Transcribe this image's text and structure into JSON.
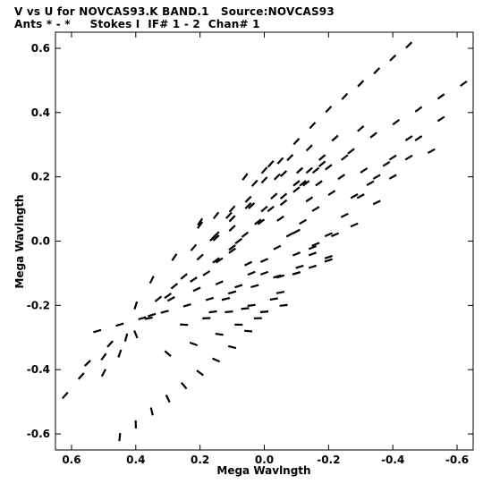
{
  "header": {
    "line1": "V vs U for NOVCAS93.K BAND.1   Source:NOVCAS93",
    "line2": "Ants * - *     Stokes I  IF# 1 - 2  Chan# 1"
  },
  "chart_data": {
    "type": "scatter",
    "title": "V vs U for NOVCAS93.K BAND.1   Source:NOVCAS93",
    "subtitle": "Ants * - *     Stokes I  IF# 1 - 2  Chan# 1",
    "xlabel": "Mega Wavlngth",
    "ylabel": "Mega Wavlngth",
    "xlim": [
      0.65,
      -0.65
    ],
    "ylim": [
      -0.65,
      0.65
    ],
    "x_inverted": true,
    "x_ticks": [
      "0.6",
      "0.4",
      "0.2",
      "0.0",
      "-0.2",
      "-0.4",
      "-0.6"
    ],
    "x_tick_values": [
      0.6,
      0.4,
      0.2,
      0.0,
      -0.2,
      -0.4,
      -0.6
    ],
    "y_ticks": [
      "0.6",
      "0.4",
      "0.2",
      "0.0",
      "-0.2",
      "-0.4",
      "-0.6"
    ],
    "y_tick_values": [
      0.6,
      0.4,
      0.2,
      0.0,
      -0.2,
      -0.4,
      -0.6
    ],
    "grid": false,
    "marker": "short dash",
    "color": "#000000",
    "series": [
      {
        "points": [
          [
            -0.45,
            0.61
          ],
          [
            -0.4,
            0.57
          ],
          [
            -0.35,
            0.53
          ],
          [
            -0.3,
            0.49
          ],
          [
            -0.25,
            0.45
          ],
          [
            -0.2,
            0.41
          ],
          [
            -0.15,
            0.36
          ],
          [
            -0.1,
            0.31
          ],
          [
            -0.05,
            0.25
          ],
          [
            0.0,
            0.19
          ],
          [
            0.05,
            0.13
          ],
          [
            0.1,
            0.07
          ],
          [
            0.15,
            0.01
          ],
          [
            0.2,
            -0.05
          ],
          [
            0.25,
            -0.11
          ],
          [
            0.3,
            -0.17
          ],
          [
            0.35,
            -0.23
          ],
          [
            0.4,
            -0.29
          ],
          [
            0.45,
            -0.35
          ],
          [
            0.5,
            -0.41
          ],
          [
            -0.62,
            0.49
          ],
          [
            -0.55,
            0.45
          ],
          [
            -0.48,
            0.41
          ],
          [
            -0.41,
            0.37
          ],
          [
            -0.34,
            0.33
          ],
          [
            -0.27,
            0.28
          ],
          [
            -0.2,
            0.23
          ],
          [
            -0.13,
            0.18
          ],
          [
            -0.06,
            0.12
          ],
          [
            0.01,
            0.06
          ],
          [
            0.08,
            0.0
          ],
          [
            0.15,
            -0.06
          ],
          [
            0.22,
            -0.12
          ],
          [
            0.29,
            -0.18
          ],
          [
            0.36,
            -0.24
          ],
          [
            0.43,
            -0.3
          ],
          [
            0.5,
            -0.36
          ],
          [
            0.57,
            -0.42
          ],
          [
            0.62,
            -0.48
          ],
          [
            0.45,
            -0.61
          ],
          [
            0.4,
            -0.57
          ],
          [
            0.35,
            -0.53
          ],
          [
            0.3,
            -0.49
          ],
          [
            0.25,
            -0.45
          ],
          [
            0.2,
            -0.41
          ],
          [
            0.15,
            -0.37
          ],
          [
            0.1,
            -0.33
          ],
          [
            0.05,
            -0.28
          ],
          [
            0.0,
            -0.22
          ],
          [
            -0.05,
            -0.16
          ],
          [
            -0.1,
            -0.1
          ],
          [
            -0.15,
            -0.04
          ],
          [
            -0.2,
            0.02
          ],
          [
            -0.25,
            0.08
          ],
          [
            -0.3,
            0.14
          ],
          [
            -0.35,
            0.2
          ],
          [
            -0.4,
            0.26
          ],
          [
            -0.45,
            0.32
          ],
          [
            0.52,
            -0.28
          ],
          [
            0.45,
            -0.26
          ],
          [
            0.38,
            -0.24
          ],
          [
            0.31,
            -0.22
          ],
          [
            0.24,
            -0.2
          ],
          [
            0.17,
            -0.18
          ],
          [
            0.1,
            -0.16
          ],
          [
            0.03,
            -0.14
          ],
          [
            -0.04,
            -0.11
          ],
          [
            -0.11,
            -0.08
          ],
          [
            -0.52,
            0.28
          ],
          [
            -0.45,
            0.26
          ],
          [
            -0.38,
            0.24
          ],
          [
            -0.31,
            0.22
          ],
          [
            -0.24,
            0.2
          ],
          [
            -0.17,
            0.18
          ],
          [
            -0.1,
            0.16
          ],
          [
            -0.03,
            0.14
          ],
          [
            0.04,
            0.11
          ],
          [
            0.11,
            0.08
          ],
          [
            0.25,
            -0.26
          ],
          [
            0.18,
            -0.24
          ],
          [
            0.11,
            -0.22
          ],
          [
            0.04,
            -0.2
          ],
          [
            -0.03,
            -0.18
          ],
          [
            0.3,
            -0.35
          ],
          [
            0.22,
            -0.32
          ],
          [
            0.14,
            -0.29
          ],
          [
            -0.25,
            0.26
          ],
          [
            -0.18,
            0.24
          ],
          [
            -0.11,
            0.22
          ],
          [
            -0.04,
            0.2
          ],
          [
            0.03,
            0.18
          ],
          [
            -0.3,
            0.35
          ],
          [
            -0.22,
            0.32
          ],
          [
            -0.14,
            0.29
          ],
          [
            0.18,
            -0.1
          ],
          [
            0.14,
            -0.06
          ],
          [
            0.1,
            -0.02
          ],
          [
            0.06,
            0.02
          ],
          [
            0.02,
            0.06
          ],
          [
            -0.02,
            0.1
          ],
          [
            -0.06,
            0.14
          ],
          [
            -0.1,
            0.18
          ],
          [
            -0.14,
            0.22
          ],
          [
            -0.18,
            0.26
          ],
          [
            0.12,
            -0.18
          ],
          [
            0.08,
            -0.14
          ],
          [
            0.04,
            -0.1
          ],
          [
            0.0,
            -0.06
          ],
          [
            -0.04,
            -0.02
          ],
          [
            -0.08,
            0.02
          ],
          [
            -0.12,
            0.06
          ],
          [
            -0.16,
            0.1
          ],
          [
            0.2,
            0.05
          ],
          [
            0.15,
            0.08
          ],
          [
            0.1,
            0.1
          ],
          [
            0.05,
            0.11
          ],
          [
            0.0,
            0.1
          ],
          [
            -0.05,
            0.07
          ],
          [
            -0.1,
            0.03
          ],
          [
            -0.15,
            -0.02
          ],
          [
            -0.2,
            -0.06
          ],
          [
            -0.2,
            -0.05
          ],
          [
            -0.15,
            -0.08
          ],
          [
            -0.1,
            -0.1
          ],
          [
            -0.05,
            -0.11
          ],
          [
            0.0,
            -0.1
          ],
          [
            0.05,
            -0.07
          ],
          [
            0.1,
            -0.03
          ],
          [
            0.15,
            0.02
          ],
          [
            0.2,
            0.06
          ],
          [
            0.28,
            -0.05
          ],
          [
            0.22,
            -0.02
          ],
          [
            0.16,
            0.01
          ],
          [
            0.1,
            0.04
          ],
          [
            -0.28,
            0.05
          ],
          [
            -0.22,
            0.02
          ],
          [
            -0.16,
            -0.01
          ],
          [
            -0.1,
            -0.04
          ],
          [
            0.35,
            -0.12
          ],
          [
            0.28,
            -0.14
          ],
          [
            0.21,
            -0.15
          ],
          [
            0.14,
            -0.13
          ],
          [
            -0.35,
            0.12
          ],
          [
            -0.28,
            0.14
          ],
          [
            -0.21,
            0.15
          ],
          [
            -0.14,
            0.13
          ],
          [
            0.06,
            0.2
          ],
          [
            0.0,
            0.22
          ],
          [
            -0.06,
            0.21
          ],
          [
            -0.12,
            0.18
          ],
          [
            -0.06,
            -0.2
          ],
          [
            0.0,
            -0.22
          ],
          [
            0.06,
            -0.21
          ],
          [
            0.12,
            -0.18
          ],
          [
            0.4,
            -0.2
          ],
          [
            0.33,
            -0.18
          ],
          [
            -0.4,
            0.2
          ],
          [
            -0.33,
            0.18
          ],
          [
            0.48,
            -0.32
          ],
          [
            -0.48,
            0.32
          ],
          [
            0.55,
            -0.38
          ],
          [
            -0.55,
            0.38
          ],
          [
            0.08,
            -0.26
          ],
          [
            0.02,
            -0.24
          ],
          [
            -0.08,
            0.26
          ],
          [
            -0.02,
            0.24
          ],
          [
            0.16,
            -0.22
          ],
          [
            -0.16,
            0.22
          ]
        ]
      }
    ]
  }
}
